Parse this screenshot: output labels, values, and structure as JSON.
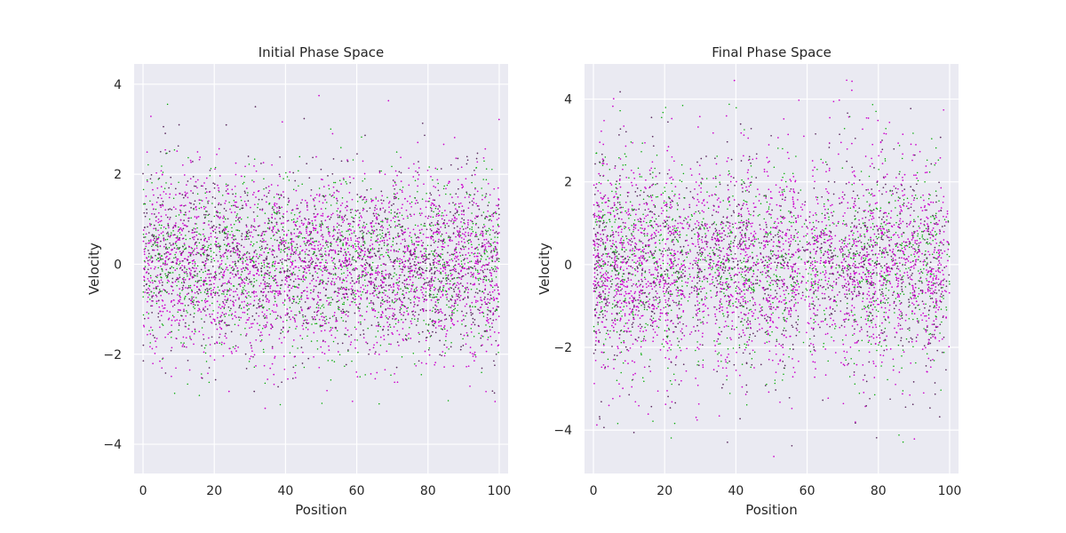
{
  "colors": {
    "background": "#ffffff",
    "plot_face": "#eaeaf2",
    "grid": "#ffffff",
    "text": "#262626",
    "series_primary": "#cc00cc",
    "series_secondary": "#00aa00",
    "dense_core": "#5a2a5e"
  },
  "chart_data": [
    {
      "type": "scatter",
      "title": "Initial Phase Space",
      "xlabel": "Position",
      "ylabel": "Velocity",
      "xlim": [
        -2.5,
        102.5
      ],
      "ylim": [
        -4.65,
        4.45
      ],
      "xticks": [
        0,
        20,
        40,
        60,
        80,
        100
      ],
      "yticks": [
        -4,
        -2,
        0,
        2,
        4
      ],
      "xtick_labels": [
        "0",
        "20",
        "40",
        "60",
        "80",
        "100"
      ],
      "ytick_labels": [
        "−4",
        "−2",
        "0",
        "2",
        "4"
      ],
      "grid": true,
      "distribution": {
        "x_range": [
          0,
          100
        ],
        "velocity_mean": 0.0,
        "velocity_sd": 1.0,
        "uniform_in_position": true
      },
      "series": [
        {
          "color": "#cc00cc",
          "values_summary": "normally distributed velocities, mean 0, sd ≈ 1"
        },
        {
          "color": "#00aa00",
          "values_summary": "normally distributed velocities, mean 0, sd ≈ 1"
        }
      ]
    },
    {
      "type": "scatter",
      "title": "Final Phase Space",
      "xlabel": "Position",
      "ylabel": "Velocity",
      "xlim": [
        -2.5,
        102.5
      ],
      "ylim": [
        -5.05,
        4.85
      ],
      "xticks": [
        0,
        20,
        40,
        60,
        80,
        100
      ],
      "yticks": [
        -4,
        -2,
        0,
        2,
        4
      ],
      "xtick_labels": [
        "0",
        "20",
        "40",
        "60",
        "80",
        "100"
      ],
      "ytick_labels": [
        "−4",
        "−2",
        "0",
        "2",
        "4"
      ],
      "grid": true,
      "distribution": {
        "x_range": [
          0,
          100
        ],
        "velocity_mean": 0.0,
        "velocity_sd": 1.1,
        "streaks": [
          1,
          3,
          6,
          8,
          11,
          14,
          17,
          21,
          24,
          30,
          35,
          38,
          42,
          44,
          49,
          53,
          56,
          62,
          66,
          71,
          73,
          77,
          79,
          82,
          86,
          90,
          94,
          97
        ]
      },
      "series": [
        {
          "color": "#cc00cc",
          "values_summary": "velocities spread into vertical streaks at listed positions"
        },
        {
          "color": "#00aa00",
          "values_summary": "velocities spread into vertical streaks at listed positions"
        }
      ]
    }
  ]
}
